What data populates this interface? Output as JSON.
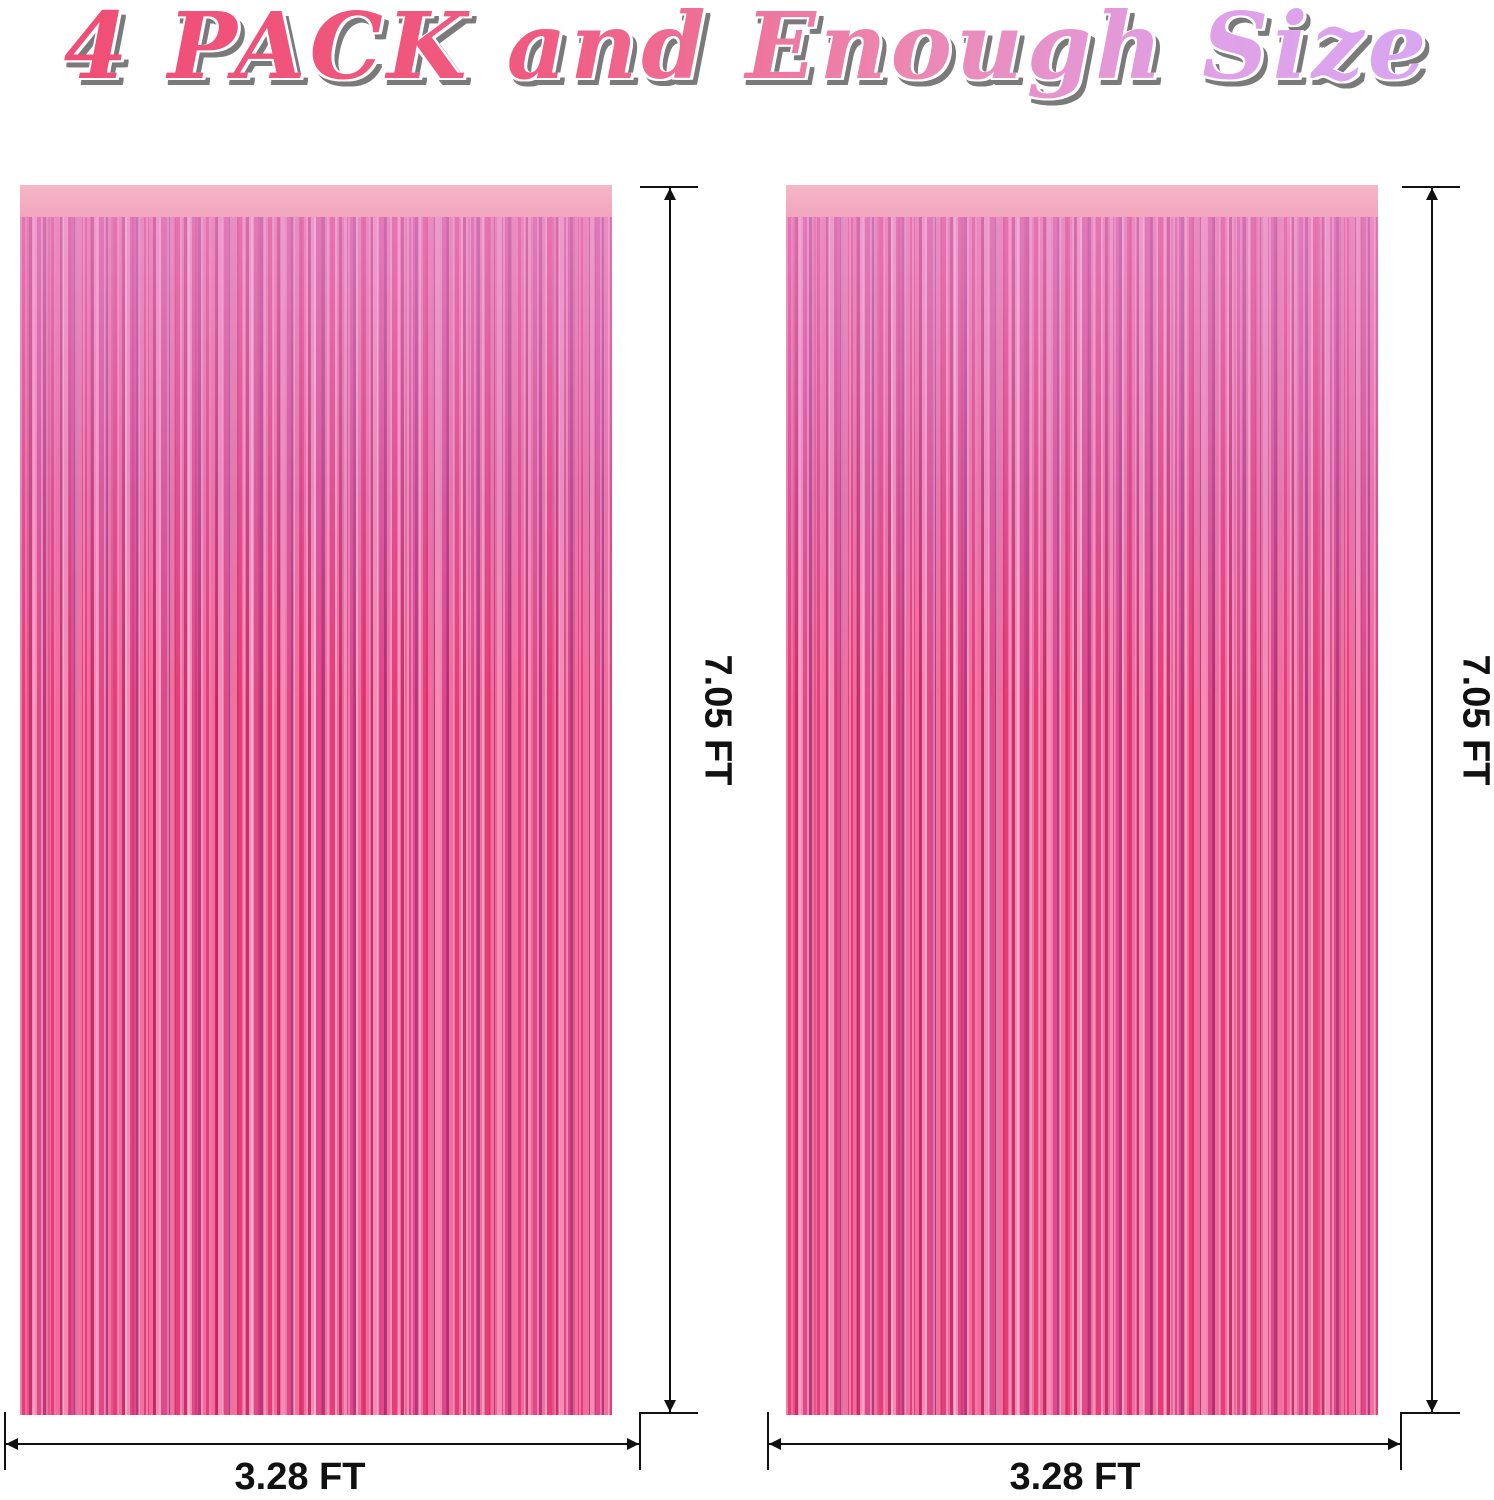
{
  "title": "4 PACK and Enough Size",
  "colors": {
    "title_start": "#f04c74",
    "title_end": "#d6a8f4",
    "curtain": "#e85a8e"
  },
  "curtains": [
    {
      "height_label": "7.05 FT",
      "width_label": "3.28 FT"
    },
    {
      "height_label": "7.05 FT",
      "width_label": "3.28 FT"
    }
  ]
}
